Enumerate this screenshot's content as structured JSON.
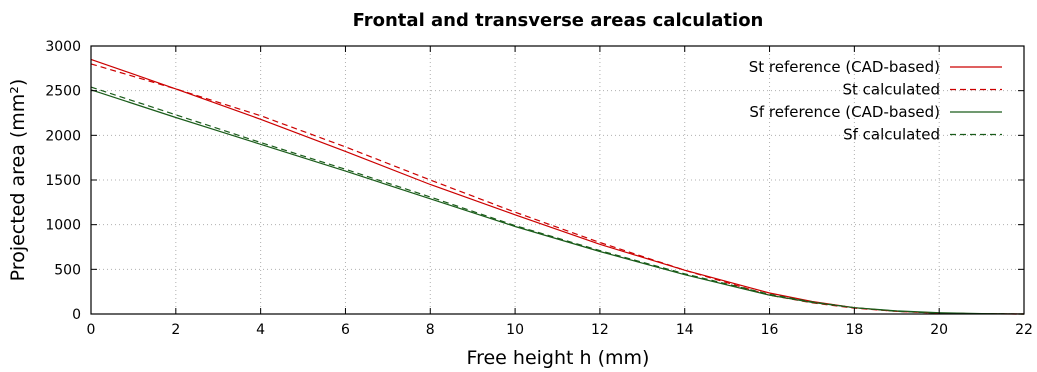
{
  "chart_data": {
    "type": "line",
    "title": "Frontal and transverse areas calculation",
    "xlabel": "Free height h (mm)",
    "ylabel": "Projected area (mm²)",
    "xlim": [
      0,
      22
    ],
    "ylim": [
      0,
      3000
    ],
    "xticks": [
      "0",
      "2",
      "4",
      "6",
      "8",
      "10",
      "12",
      "14",
      "16",
      "18",
      "20",
      "22"
    ],
    "yticks": [
      "0",
      "500",
      "1000",
      "1500",
      "2000",
      "2500",
      "3000"
    ],
    "grid": true,
    "legend_position": "top-right",
    "series": [
      {
        "name": "St reference (CAD-based)",
        "color": "#cc0000",
        "dash": "solid",
        "x": [
          0,
          2,
          4,
          6,
          8,
          10,
          12,
          14,
          16,
          17,
          18,
          19,
          20,
          21,
          22
        ],
        "y": [
          2850,
          2520,
          2180,
          1820,
          1450,
          1110,
          780,
          490,
          235,
          140,
          70,
          30,
          10,
          2,
          0
        ]
      },
      {
        "name": "St calculated",
        "color": "#cc0000",
        "dash": "dashed",
        "x": [
          0,
          2,
          4,
          6,
          8,
          10,
          12,
          14,
          16,
          17,
          18,
          19,
          20,
          21,
          22
        ],
        "y": [
          2800,
          2520,
          2220,
          1870,
          1500,
          1140,
          800,
          490,
          210,
          125,
          65,
          30,
          10,
          2,
          0
        ]
      },
      {
        "name": "Sf reference (CAD-based)",
        "color": "#1a5c1a",
        "dash": "solid",
        "x": [
          0,
          2,
          4,
          6,
          8,
          10,
          12,
          14,
          16,
          17,
          18,
          19,
          20,
          21,
          22
        ],
        "y": [
          2510,
          2200,
          1900,
          1600,
          1290,
          980,
          700,
          440,
          210,
          130,
          70,
          35,
          15,
          4,
          0
        ]
      },
      {
        "name": "Sf calculated",
        "color": "#1a5c1a",
        "dash": "dashed",
        "x": [
          0,
          2,
          4,
          6,
          8,
          10,
          12,
          14,
          16,
          17,
          18,
          19,
          20,
          21,
          22
        ],
        "y": [
          2540,
          2230,
          1920,
          1620,
          1310,
          990,
          710,
          450,
          220,
          135,
          70,
          30,
          10,
          2,
          0
        ]
      }
    ]
  }
}
